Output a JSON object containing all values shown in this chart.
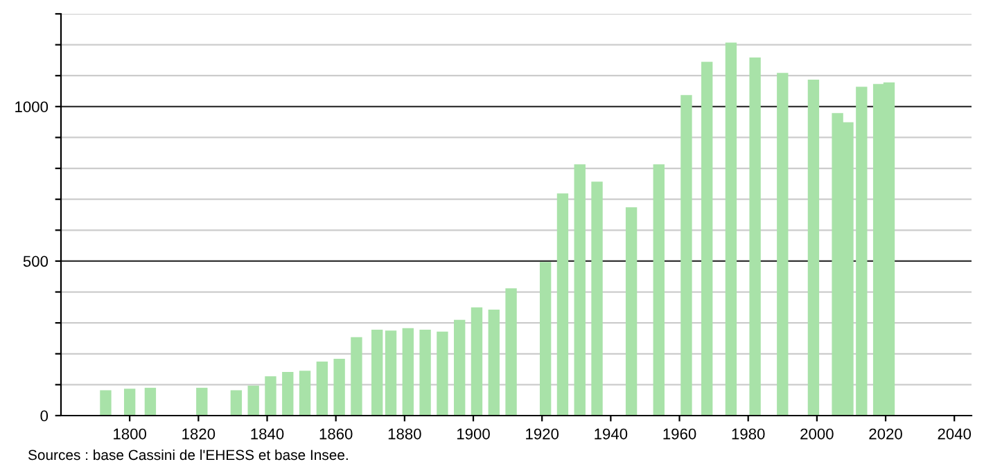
{
  "chart_data": {
    "type": "bar",
    "color": "#a8e2a8",
    "x": [
      1793,
      1800,
      1806,
      1821,
      1831,
      1836,
      1841,
      1846,
      1851,
      1856,
      1861,
      1866,
      1872,
      1876,
      1881,
      1886,
      1891,
      1896,
      1901,
      1906,
      1911,
      1921,
      1926,
      1931,
      1936,
      1946,
      1954,
      1962,
      1968,
      1975,
      1982,
      1990,
      1999,
      2006,
      2009,
      2013,
      2018,
      2021
    ],
    "values": [
      82,
      87,
      90,
      90,
      82,
      97,
      127,
      141,
      145,
      175,
      184,
      254,
      278,
      275,
      283,
      278,
      272,
      310,
      350,
      343,
      412,
      497,
      719,
      813,
      757,
      674,
      813,
      1037,
      1145,
      1207,
      1159,
      1109,
      1087,
      979,
      949,
      1064,
      1073,
      1078
    ],
    "xlim": [
      1780,
      2045
    ],
    "xticks": [
      1800,
      1820,
      1840,
      1860,
      1880,
      1900,
      1920,
      1940,
      1960,
      1980,
      2000,
      2020,
      2040
    ],
    "ylim": [
      0,
      1300
    ],
    "yticks": [
      0,
      {
        "value": 100,
        "label": null
      },
      {
        "value": 200,
        "label": null
      },
      {
        "value": 300,
        "label": null
      },
      {
        "value": 400,
        "label": null
      },
      500,
      {
        "value": 600,
        "label": null
      },
      {
        "value": 700,
        "label": null
      },
      {
        "value": 800,
        "label": null
      },
      {
        "value": 900,
        "label": null
      },
      1000,
      {
        "value": 1100,
        "label": null
      },
      {
        "value": 1200,
        "label": null
      },
      {
        "value": 1300,
        "label": null
      }
    ],
    "grid": "y",
    "annotations": [
      "Sources : base Cassini de l'EHESS et base Insee."
    ]
  }
}
